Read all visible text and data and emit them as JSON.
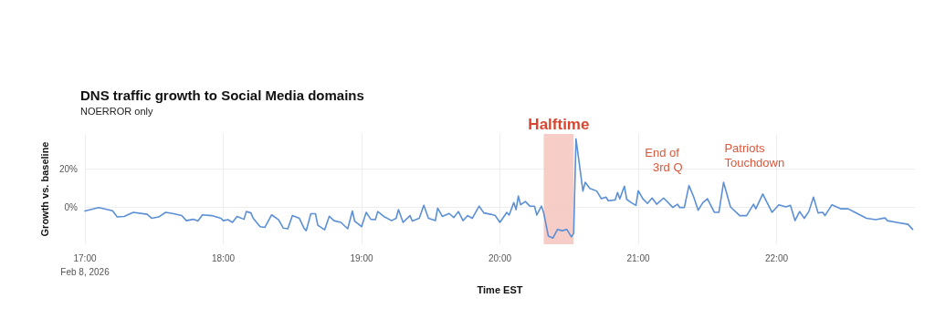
{
  "chart_data": {
    "type": "line",
    "title": "DNS traffic growth to Social Media domains",
    "subtitle": "NOERROR only",
    "xlabel": "Time EST",
    "ylabel": "Growth vs. baseline",
    "x": [
      "2026-02-08T17:00",
      "2026-02-08T17:06",
      "2026-02-08T17:12",
      "2026-02-08T17:14",
      "2026-02-08T17:17",
      "2026-02-08T17:21",
      "2026-02-08T17:27",
      "2026-02-08T17:29",
      "2026-02-08T17:32",
      "2026-02-08T17:35",
      "2026-02-08T17:38",
      "2026-02-08T17:42",
      "2026-02-08T17:44",
      "2026-02-08T17:47",
      "2026-02-08T17:49",
      "2026-02-08T17:51",
      "2026-02-08T17:55",
      "2026-02-08T17:59",
      "2026-02-08T18:00",
      "2026-02-08T18:02",
      "2026-02-08T18:04",
      "2026-02-08T18:06",
      "2026-02-08T18:09",
      "2026-02-08T18:10",
      "2026-02-08T18:12",
      "2026-02-08T18:13",
      "2026-02-08T18:16",
      "2026-02-08T18:18",
      "2026-02-08T18:21",
      "2026-02-08T18:24",
      "2026-02-08T18:26",
      "2026-02-08T18:28",
      "2026-02-08T18:30",
      "2026-02-08T18:33",
      "2026-02-08T18:35",
      "2026-02-08T18:36",
      "2026-02-08T18:38",
      "2026-02-08T18:40",
      "2026-02-08T18:41",
      "2026-02-08T18:44",
      "2026-02-08T18:46",
      "2026-02-08T18:48",
      "2026-02-08T18:51",
      "2026-02-08T18:54",
      "2026-02-08T18:56",
      "2026-02-08T18:57",
      "2026-02-08T19:00",
      "2026-02-08T19:02",
      "2026-02-08T19:04",
      "2026-02-08T19:06",
      "2026-02-08T19:07",
      "2026-02-08T19:10",
      "2026-02-08T19:13",
      "2026-02-08T19:15",
      "2026-02-08T19:16",
      "2026-02-08T19:18",
      "2026-02-08T19:21",
      "2026-02-08T19:22",
      "2026-02-08T19:25",
      "2026-02-08T19:27",
      "2026-02-08T19:29",
      "2026-02-08T19:32",
      "2026-02-08T19:33",
      "2026-02-08T19:35",
      "2026-02-08T19:38",
      "2026-02-08T19:40",
      "2026-02-08T19:42",
      "2026-02-08T19:44",
      "2026-02-08T19:46",
      "2026-02-08T19:48",
      "2026-02-08T19:51",
      "2026-02-08T19:53",
      "2026-02-08T19:56",
      "2026-02-08T19:58",
      "2026-02-08T20:00",
      "2026-02-08T20:03",
      "2026-02-08T20:04",
      "2026-02-08T20:06",
      "2026-02-08T20:07",
      "2026-02-08T20:08",
      "2026-02-08T20:09",
      "2026-02-08T20:11",
      "2026-02-08T20:13",
      "2026-02-08T20:15",
      "2026-02-08T20:16",
      "2026-02-08T20:18",
      "2026-02-08T20:19",
      "2026-02-08T20:21",
      "2026-02-08T20:23",
      "2026-02-08T20:25",
      "2026-02-08T20:27",
      "2026-02-08T20:29",
      "2026-02-08T20:31",
      "2026-02-08T20:32",
      "2026-02-08T20:33",
      "2026-02-08T20:36",
      "2026-02-08T20:37",
      "2026-02-08T20:39",
      "2026-02-08T20:42",
      "2026-02-08T20:44",
      "2026-02-08T20:46",
      "2026-02-08T20:47",
      "2026-02-08T20:50",
      "2026-02-08T20:51",
      "2026-02-08T20:52",
      "2026-02-08T20:54",
      "2026-02-08T20:55",
      "2026-02-08T20:57",
      "2026-02-08T20:59",
      "2026-02-08T21:00",
      "2026-02-08T21:02",
      "2026-02-08T21:04",
      "2026-02-08T21:06",
      "2026-02-08T21:08",
      "2026-02-08T21:11",
      "2026-02-08T21:15",
      "2026-02-08T21:17",
      "2026-02-08T21:18",
      "2026-02-08T21:20",
      "2026-02-08T21:22",
      "2026-02-08T21:24",
      "2026-02-08T21:26",
      "2026-02-08T21:28",
      "2026-02-08T21:30",
      "2026-02-08T21:33",
      "2026-02-08T21:35",
      "2026-02-08T21:37",
      "2026-02-08T21:40",
      "2026-02-08T21:44",
      "2026-02-08T21:47",
      "2026-02-08T21:50",
      "2026-02-08T21:51",
      "2026-02-08T21:54",
      "2026-02-08T21:58",
      "2026-02-08T22:01",
      "2026-02-08T22:04",
      "2026-02-08T22:06",
      "2026-02-08T22:08",
      "2026-02-08T22:10",
      "2026-02-08T22:12",
      "2026-02-08T22:14",
      "2026-02-08T22:16",
      "2026-02-08T22:18",
      "2026-02-08T22:20",
      "2026-02-08T22:21",
      "2026-02-08T22:24",
      "2026-02-08T22:28",
      "2026-02-08T22:31",
      "2026-02-08T22:34",
      "2026-02-08T22:39",
      "2026-02-08T22:43",
      "2026-02-08T22:47",
      "2026-02-08T22:48",
      "2026-02-08T22:52",
      "2026-02-08T22:57",
      "2026-02-08T22:59"
    ],
    "series": [
      {
        "color": "#5b8fd6",
        "values": [
          -1.8,
          0,
          -1.7,
          -4.9,
          -4.6,
          -2.5,
          -3.5,
          -5.6,
          -4.9,
          -2.5,
          -3.1,
          -4.2,
          -6.8,
          -6.1,
          -7,
          -3.8,
          -4.2,
          -5.6,
          -6.8,
          -6.3,
          -7.7,
          -4.6,
          -6.1,
          -2.1,
          -2.8,
          -5.6,
          -9.9,
          -10.3,
          -3.8,
          -6.3,
          -10.6,
          -11,
          -4.2,
          -5.6,
          -10.6,
          -12,
          -3.2,
          -3.2,
          -9.2,
          -11.5,
          -4.5,
          -6.8,
          -7.7,
          -11,
          -1.8,
          -7,
          -9.9,
          -2.5,
          -6.1,
          -6.3,
          -2.1,
          -4.9,
          -6.8,
          -5.6,
          -1.1,
          -7.7,
          -4.2,
          -7,
          -5.6,
          1.1,
          -5.6,
          -6.8,
          -0.3,
          -4.6,
          -3.1,
          -5.2,
          -2.1,
          -6.8,
          -4.2,
          -5.6,
          0.7,
          -2.8,
          -3.5,
          -4.2,
          -7.7,
          -2.5,
          -3.9,
          2.5,
          -1.1,
          5.9,
          1.4,
          3.1,
          0.7,
          0.7,
          -3.9,
          0.7,
          -2.8,
          -14.8,
          -15.8,
          -11.3,
          -12,
          -11.3,
          -15.2,
          -13.4,
          35.5,
          8.5,
          13,
          9.9,
          8.5,
          4.5,
          5.4,
          3.5,
          3.9,
          7.7,
          4.5,
          11,
          4.2,
          2.5,
          1.1,
          8.7,
          4.5,
          2.1,
          4.9,
          1.7,
          4.9,
          0,
          1.7,
          0,
          0,
          11.3,
          5.6,
          -1.4,
          2.5,
          4.5,
          -2.5,
          -2.5,
          13,
          0.3,
          -4.2,
          -4.2,
          1.7,
          -0.7,
          7,
          -2.5,
          1.4,
          0.3,
          1.1,
          -6.8,
          -2.1,
          -5.6,
          -2.1,
          5.4,
          -2.8,
          -2.5,
          -4.2,
          1.4,
          -0.7,
          -0.7,
          -2.5,
          -5.6,
          -6.3,
          -5.4,
          -6.8,
          -7.7,
          -8.7,
          -11.3
        ]
      }
    ],
    "xlim": [
      "2026-02-08T17:00",
      "2026-02-08T23:00"
    ],
    "xticks": [
      {
        "value": "2026-02-08T17:00",
        "label": "17:00\nFeb 8, 2026"
      },
      {
        "value": "2026-02-08T18:00",
        "label": "18:00"
      },
      {
        "value": "2026-02-08T19:00",
        "label": "19:00"
      },
      {
        "value": "2026-02-08T20:00",
        "label": "20:00"
      },
      {
        "value": "2026-02-08T21:00",
        "label": "21:00"
      },
      {
        "value": "2026-02-08T22:00",
        "label": "22:00"
      }
    ],
    "ylim": [
      -19,
      38
    ],
    "yticks": [
      {
        "value": 0,
        "label": "0%"
      },
      {
        "value": 20,
        "label": "20%"
      }
    ],
    "bands": [
      {
        "axis": "x",
        "from": "2026-02-08T20:19",
        "to": "2026-02-08T20:32",
        "label": "Halftime",
        "color": "#f4c4bd"
      }
    ],
    "annotations": [
      {
        "text": "End of 3rd Q",
        "x": "2026-02-08T21:22",
        "y": 11.3
      },
      {
        "text": "Patriots Touchdown",
        "x": "2026-02-08T21:37",
        "y": 13
      }
    ],
    "grid": true,
    "marker": "none",
    "line_style": "solid"
  }
}
